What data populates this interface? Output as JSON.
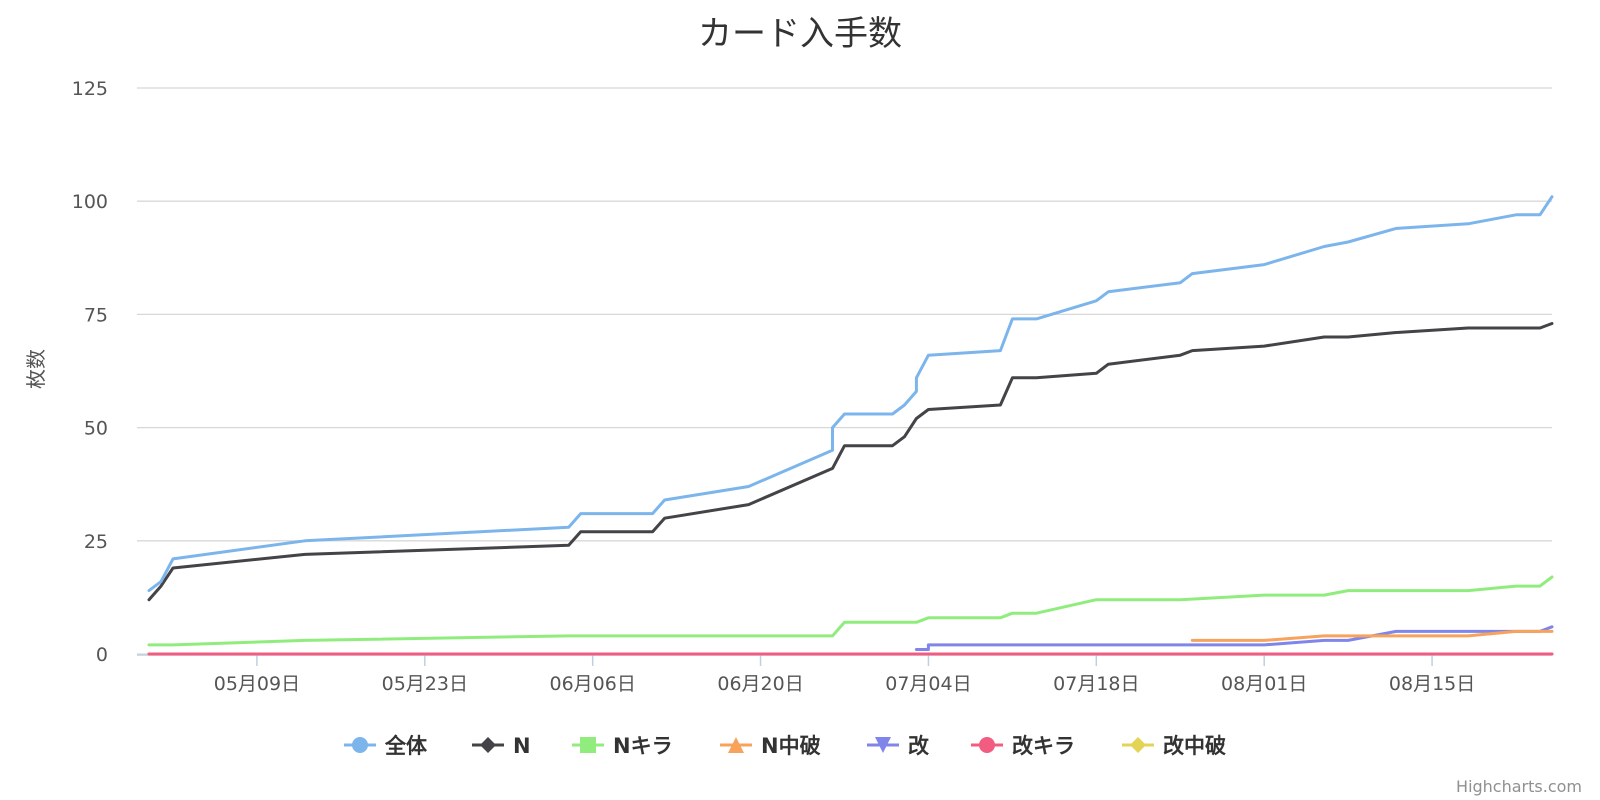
{
  "chart_data": {
    "type": "line",
    "title": "カード入手数",
    "ylabel": "枚数",
    "xlabel": "",
    "ylim": [
      0,
      125
    ],
    "yticks": [
      0,
      25,
      50,
      75,
      100,
      125
    ],
    "xlim": [
      "2018-04-29",
      "2018-08-25"
    ],
    "xticks": [
      {
        "date": "2018-05-09",
        "label": "05月09日"
      },
      {
        "date": "2018-05-23",
        "label": "05月23日"
      },
      {
        "date": "2018-06-06",
        "label": "06月06日"
      },
      {
        "date": "2018-06-20",
        "label": "06月20日"
      },
      {
        "date": "2018-07-04",
        "label": "07月04日"
      },
      {
        "date": "2018-07-18",
        "label": "07月18日"
      },
      {
        "date": "2018-08-01",
        "label": "08月01日"
      },
      {
        "date": "2018-08-15",
        "label": "08月15日"
      }
    ],
    "grid": true,
    "legend": "bottom-center",
    "series": [
      {
        "name": "全体",
        "color": "#7cb5ec",
        "marker": "circle",
        "points": [
          [
            "2018-04-30",
            14
          ],
          [
            "2018-05-01",
            16
          ],
          [
            "2018-05-02",
            21
          ],
          [
            "2018-05-13",
            25
          ],
          [
            "2018-06-04",
            28
          ],
          [
            "2018-06-05",
            31
          ],
          [
            "2018-06-11",
            31
          ],
          [
            "2018-06-12",
            34
          ],
          [
            "2018-06-19",
            37
          ],
          [
            "2018-06-26",
            45
          ],
          [
            "2018-06-26",
            50
          ],
          [
            "2018-06-27",
            53
          ],
          [
            "2018-07-01",
            53
          ],
          [
            "2018-07-02",
            55
          ],
          [
            "2018-07-03",
            58
          ],
          [
            "2018-07-03",
            61
          ],
          [
            "2018-07-04",
            66
          ],
          [
            "2018-07-10",
            67
          ],
          [
            "2018-07-11",
            74
          ],
          [
            "2018-07-13",
            74
          ],
          [
            "2018-07-18",
            78
          ],
          [
            "2018-07-19",
            80
          ],
          [
            "2018-07-25",
            82
          ],
          [
            "2018-07-26",
            84
          ],
          [
            "2018-08-01",
            86
          ],
          [
            "2018-08-01",
            86
          ],
          [
            "2018-08-06",
            90
          ],
          [
            "2018-08-08",
            91
          ],
          [
            "2018-08-12",
            94
          ],
          [
            "2018-08-18",
            95
          ],
          [
            "2018-08-22",
            97
          ],
          [
            "2018-08-24",
            97
          ],
          [
            "2018-08-25",
            101
          ]
        ]
      },
      {
        "name": "N",
        "color": "#434348",
        "marker": "diamond",
        "points": [
          [
            "2018-04-30",
            12
          ],
          [
            "2018-05-01",
            15
          ],
          [
            "2018-05-02",
            19
          ],
          [
            "2018-05-13",
            22
          ],
          [
            "2018-06-04",
            24
          ],
          [
            "2018-06-05",
            27
          ],
          [
            "2018-06-11",
            27
          ],
          [
            "2018-06-12",
            30
          ],
          [
            "2018-06-19",
            33
          ],
          [
            "2018-06-26",
            41
          ],
          [
            "2018-06-27",
            46
          ],
          [
            "2018-07-01",
            46
          ],
          [
            "2018-07-02",
            48
          ],
          [
            "2018-07-03",
            52
          ],
          [
            "2018-07-04",
            54
          ],
          [
            "2018-07-10",
            55
          ],
          [
            "2018-07-11",
            61
          ],
          [
            "2018-07-13",
            61
          ],
          [
            "2018-07-18",
            62
          ],
          [
            "2018-07-19",
            64
          ],
          [
            "2018-07-25",
            66
          ],
          [
            "2018-07-26",
            67
          ],
          [
            "2018-08-01",
            68
          ],
          [
            "2018-08-01",
            68
          ],
          [
            "2018-08-06",
            70
          ],
          [
            "2018-08-08",
            70
          ],
          [
            "2018-08-12",
            71
          ],
          [
            "2018-08-18",
            72
          ],
          [
            "2018-08-22",
            72
          ],
          [
            "2018-08-24",
            72
          ],
          [
            "2018-08-25",
            73
          ]
        ]
      },
      {
        "name": "Nキラ",
        "color": "#90ed7d",
        "marker": "square",
        "points": [
          [
            "2018-04-30",
            2
          ],
          [
            "2018-05-02",
            2
          ],
          [
            "2018-05-13",
            3
          ],
          [
            "2018-06-04",
            4
          ],
          [
            "2018-06-26",
            4
          ],
          [
            "2018-06-27",
            7
          ],
          [
            "2018-07-03",
            7
          ],
          [
            "2018-07-04",
            8
          ],
          [
            "2018-07-10",
            8
          ],
          [
            "2018-07-11",
            9
          ],
          [
            "2018-07-13",
            9
          ],
          [
            "2018-07-18",
            12
          ],
          [
            "2018-07-25",
            12
          ],
          [
            "2018-08-01",
            13
          ],
          [
            "2018-08-06",
            13
          ],
          [
            "2018-08-08",
            14
          ],
          [
            "2018-08-18",
            14
          ],
          [
            "2018-08-22",
            15
          ],
          [
            "2018-08-24",
            15
          ],
          [
            "2018-08-25",
            17
          ]
        ]
      },
      {
        "name": "N中破",
        "color": "#f7a35c",
        "marker": "triangle",
        "points": [
          [
            "2018-07-26",
            3
          ],
          [
            "2018-08-01",
            3
          ],
          [
            "2018-08-06",
            4
          ],
          [
            "2018-08-12",
            4
          ],
          [
            "2018-08-18",
            4
          ],
          [
            "2018-08-22",
            5
          ],
          [
            "2018-08-25",
            5
          ]
        ]
      },
      {
        "name": "改",
        "color": "#8085e9",
        "marker": "triangle-down",
        "points": [
          [
            "2018-07-03",
            1
          ],
          [
            "2018-07-04",
            1
          ],
          [
            "2018-07-04",
            2
          ],
          [
            "2018-08-01",
            2
          ],
          [
            "2018-08-06",
            3
          ],
          [
            "2018-08-08",
            3
          ],
          [
            "2018-08-12",
            5
          ],
          [
            "2018-08-22",
            5
          ],
          [
            "2018-08-24",
            5
          ],
          [
            "2018-08-25",
            6
          ]
        ]
      },
      {
        "name": "改キラ",
        "color": "#f15c80",
        "marker": "circle",
        "points": [
          [
            "2018-04-30",
            0
          ],
          [
            "2018-08-25",
            0
          ]
        ]
      },
      {
        "name": "改中破",
        "color": "#e4d354",
        "marker": "diamond",
        "points": [
          [
            "2018-04-30",
            0
          ],
          [
            "2018-08-25",
            0
          ]
        ]
      }
    ]
  },
  "credits": "Highcharts.com"
}
